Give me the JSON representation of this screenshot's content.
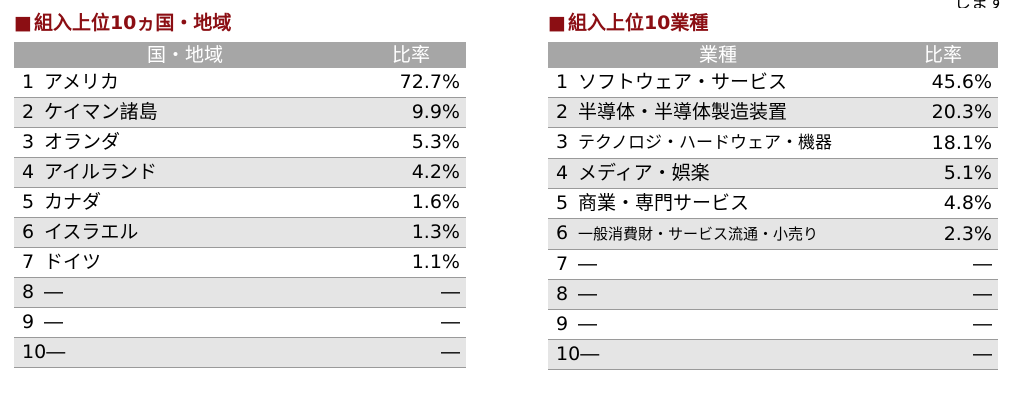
{
  "corner_text": "します",
  "left": {
    "title_mark": "■",
    "title": "組入上位10ヵ国・地域",
    "header": {
      "name": "国・地域",
      "ratio": "比率"
    },
    "rows": [
      {
        "rank": "1",
        "name": "アメリカ",
        "ratio": "72.7%"
      },
      {
        "rank": "2",
        "name": "ケイマン諸島",
        "ratio": "9.9%"
      },
      {
        "rank": "3",
        "name": "オランダ",
        "ratio": "5.3%"
      },
      {
        "rank": "4",
        "name": "アイルランド",
        "ratio": "4.2%"
      },
      {
        "rank": "5",
        "name": "カナダ",
        "ratio": "1.6%"
      },
      {
        "rank": "6",
        "name": "イスラエル",
        "ratio": "1.3%"
      },
      {
        "rank": "7",
        "name": "ドイツ",
        "ratio": "1.1%"
      },
      {
        "rank": "8",
        "name": "―",
        "ratio": "―"
      },
      {
        "rank": "9",
        "name": "―",
        "ratio": "―"
      },
      {
        "rank": "10",
        "name": "―",
        "ratio": "―"
      }
    ]
  },
  "right": {
    "title_mark": "■",
    "title": "組入上位10業種",
    "header": {
      "name": "業種",
      "ratio": "比率"
    },
    "rows": [
      {
        "rank": "1",
        "name": "ソフトウェア・サービス",
        "ratio": "45.6%"
      },
      {
        "rank": "2",
        "name": "半導体・半導体製造装置",
        "ratio": "20.3%"
      },
      {
        "rank": "3",
        "name": "テクノロジ・ハードウェア・機器",
        "ratio": "18.1%"
      },
      {
        "rank": "4",
        "name": "メディア・娯楽",
        "ratio": "5.1%"
      },
      {
        "rank": "5",
        "name": "商業・専門サービス",
        "ratio": "4.8%"
      },
      {
        "rank": "6",
        "name": "一般消費財・サービス流通・小売り",
        "ratio": "2.3%"
      },
      {
        "rank": "7",
        "name": "―",
        "ratio": "―"
      },
      {
        "rank": "8",
        "name": "―",
        "ratio": "―"
      },
      {
        "rank": "9",
        "name": "―",
        "ratio": "―"
      },
      {
        "rank": "10",
        "name": "―",
        "ratio": "―"
      }
    ]
  }
}
